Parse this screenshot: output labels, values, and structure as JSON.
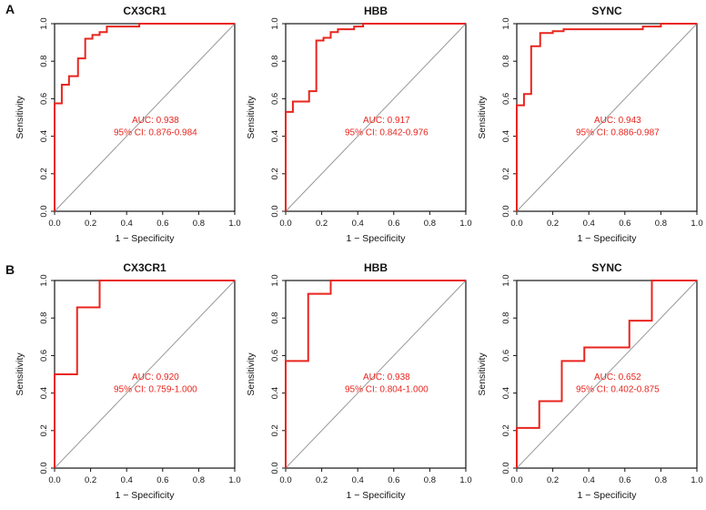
{
  "figure": {
    "row_labels": [
      "A",
      "B"
    ]
  },
  "style": {
    "curve_color": "#e8251e",
    "reference_color": "#999999",
    "axis_color": "#141414",
    "annotation_color": "#e8251e",
    "background": "#ffffff"
  },
  "chart_data": [
    {
      "type": "line",
      "panel": "A",
      "title": "CX3CR1",
      "xlabel": "1 − Specificity",
      "ylabel": "Sensitivity",
      "xlim": [
        0,
        1
      ],
      "ylim": [
        0,
        1
      ],
      "xticks": [
        "0.0",
        "0.2",
        "0.4",
        "0.6",
        "0.8",
        "1.0"
      ],
      "yticks": [
        "0.0",
        "0.2",
        "0.4",
        "0.6",
        "0.8",
        "1.0"
      ],
      "grid": false,
      "legend": "none",
      "annotations": [
        {
          "text": "AUC: 0.938",
          "x": 0.56,
          "y": 0.47
        },
        {
          "text": "95% CI: 0.876-0.984",
          "x": 0.56,
          "y": 0.405
        }
      ],
      "series": [
        {
          "name": "roc-curve",
          "points": [
            [
              0,
              0
            ],
            [
              0,
              0.575
            ],
            [
              0.04,
              0.575
            ],
            [
              0.04,
              0.675
            ],
            [
              0.08,
              0.675
            ],
            [
              0.08,
              0.72
            ],
            [
              0.13,
              0.72
            ],
            [
              0.13,
              0.815
            ],
            [
              0.17,
              0.815
            ],
            [
              0.17,
              0.92
            ],
            [
              0.21,
              0.92
            ],
            [
              0.21,
              0.94
            ],
            [
              0.25,
              0.94
            ],
            [
              0.25,
              0.955
            ],
            [
              0.29,
              0.955
            ],
            [
              0.29,
              0.985
            ],
            [
              0.47,
              0.985
            ],
            [
              0.47,
              1
            ],
            [
              1,
              1
            ]
          ]
        },
        {
          "name": "chance-reference",
          "points": [
            [
              0,
              0
            ],
            [
              1,
              1
            ]
          ]
        }
      ]
    },
    {
      "type": "line",
      "panel": "A",
      "title": "HBB",
      "xlabel": "1 − Specificity",
      "ylabel": "Sensitivity",
      "xlim": [
        0,
        1
      ],
      "ylim": [
        0,
        1
      ],
      "xticks": [
        "0.0",
        "0.2",
        "0.4",
        "0.6",
        "0.8",
        "1.0"
      ],
      "yticks": [
        "0.0",
        "0.2",
        "0.4",
        "0.6",
        "0.8",
        "1.0"
      ],
      "grid": false,
      "legend": "none",
      "annotations": [
        {
          "text": "AUC: 0.917",
          "x": 0.56,
          "y": 0.47
        },
        {
          "text": "95% CI: 0.842-0.976",
          "x": 0.56,
          "y": 0.405
        }
      ],
      "series": [
        {
          "name": "roc-curve",
          "points": [
            [
              0,
              0
            ],
            [
              0,
              0.53
            ],
            [
              0.04,
              0.53
            ],
            [
              0.04,
              0.585
            ],
            [
              0.13,
              0.585
            ],
            [
              0.13,
              0.64
            ],
            [
              0.17,
              0.64
            ],
            [
              0.17,
              0.91
            ],
            [
              0.21,
              0.91
            ],
            [
              0.21,
              0.925
            ],
            [
              0.25,
              0.925
            ],
            [
              0.25,
              0.955
            ],
            [
              0.29,
              0.955
            ],
            [
              0.29,
              0.97
            ],
            [
              0.38,
              0.97
            ],
            [
              0.38,
              0.985
            ],
            [
              0.43,
              0.985
            ],
            [
              0.43,
              1
            ],
            [
              1,
              1
            ]
          ]
        },
        {
          "name": "chance-reference",
          "points": [
            [
              0,
              0
            ],
            [
              1,
              1
            ]
          ]
        }
      ]
    },
    {
      "type": "line",
      "panel": "A",
      "title": "SYNC",
      "xlabel": "1 − Specificity",
      "ylabel": "Sensitivity",
      "xlim": [
        0,
        1
      ],
      "ylim": [
        0,
        1
      ],
      "xticks": [
        "0.0",
        "0.2",
        "0.4",
        "0.6",
        "0.8",
        "1.0"
      ],
      "yticks": [
        "0.0",
        "0.2",
        "0.4",
        "0.6",
        "0.8",
        "1.0"
      ],
      "grid": false,
      "legend": "none",
      "annotations": [
        {
          "text": "AUC: 0.943",
          "x": 0.56,
          "y": 0.47
        },
        {
          "text": "95% CI: 0.886-0.987",
          "x": 0.56,
          "y": 0.405
        }
      ],
      "series": [
        {
          "name": "roc-curve",
          "points": [
            [
              0,
              0
            ],
            [
              0,
              0.565
            ],
            [
              0.04,
              0.565
            ],
            [
              0.04,
              0.625
            ],
            [
              0.08,
              0.625
            ],
            [
              0.08,
              0.88
            ],
            [
              0.13,
              0.88
            ],
            [
              0.13,
              0.95
            ],
            [
              0.2,
              0.95
            ],
            [
              0.2,
              0.96
            ],
            [
              0.26,
              0.96
            ],
            [
              0.26,
              0.97
            ],
            [
              0.7,
              0.97
            ],
            [
              0.7,
              0.985
            ],
            [
              0.8,
              0.985
            ],
            [
              0.8,
              1
            ],
            [
              1,
              1
            ]
          ]
        },
        {
          "name": "chance-reference",
          "points": [
            [
              0,
              0
            ],
            [
              1,
              1
            ]
          ]
        }
      ]
    },
    {
      "type": "line",
      "panel": "B",
      "title": "CX3CR1",
      "xlabel": "1 − Specificity",
      "ylabel": "Sensitivity",
      "xlim": [
        0,
        1
      ],
      "ylim": [
        0,
        1
      ],
      "xticks": [
        "0.0",
        "0.2",
        "0.4",
        "0.6",
        "0.8",
        "1.0"
      ],
      "yticks": [
        "0.0",
        "0.2",
        "0.4",
        "0.6",
        "0.8",
        "1.0"
      ],
      "grid": false,
      "legend": "none",
      "annotations": [
        {
          "text": "AUC: 0.920",
          "x": 0.56,
          "y": 0.47
        },
        {
          "text": "95% CI: 0.759-1.000",
          "x": 0.56,
          "y": 0.405
        }
      ],
      "series": [
        {
          "name": "roc-curve",
          "points": [
            [
              0,
              0
            ],
            [
              0,
              0.5
            ],
            [
              0.125,
              0.5
            ],
            [
              0.125,
              0.857
            ],
            [
              0.25,
              0.857
            ],
            [
              0.25,
              1
            ],
            [
              1,
              1
            ]
          ]
        },
        {
          "name": "chance-reference",
          "points": [
            [
              0,
              0
            ],
            [
              1,
              1
            ]
          ]
        }
      ]
    },
    {
      "type": "line",
      "panel": "B",
      "title": "HBB",
      "xlabel": "1 − Specificity",
      "ylabel": "Sensitivity",
      "xlim": [
        0,
        1
      ],
      "ylim": [
        0,
        1
      ],
      "xticks": [
        "0.0",
        "0.2",
        "0.4",
        "0.6",
        "0.8",
        "1.0"
      ],
      "yticks": [
        "0.0",
        "0.2",
        "0.4",
        "0.6",
        "0.8",
        "1.0"
      ],
      "grid": false,
      "legend": "none",
      "annotations": [
        {
          "text": "AUC: 0.938",
          "x": 0.56,
          "y": 0.47
        },
        {
          "text": "95% CI: 0.804-1.000",
          "x": 0.56,
          "y": 0.405
        }
      ],
      "series": [
        {
          "name": "roc-curve",
          "points": [
            [
              0,
              0
            ],
            [
              0,
              0.571
            ],
            [
              0.125,
              0.571
            ],
            [
              0.125,
              0.929
            ],
            [
              0.25,
              0.929
            ],
            [
              0.25,
              1
            ],
            [
              1,
              1
            ]
          ]
        },
        {
          "name": "chance-reference",
          "points": [
            [
              0,
              0
            ],
            [
              1,
              1
            ]
          ]
        }
      ]
    },
    {
      "type": "line",
      "panel": "B",
      "title": "SYNC",
      "xlabel": "1 − Specificity",
      "ylabel": "Sensitivity",
      "xlim": [
        0,
        1
      ],
      "ylim": [
        0,
        1
      ],
      "xticks": [
        "0.0",
        "0.2",
        "0.4",
        "0.6",
        "0.8",
        "1.0"
      ],
      "yticks": [
        "0.0",
        "0.2",
        "0.4",
        "0.6",
        "0.8",
        "1.0"
      ],
      "grid": false,
      "legend": "none",
      "annotations": [
        {
          "text": "AUC: 0.652",
          "x": 0.56,
          "y": 0.47
        },
        {
          "text": "95% CI: 0.402-0.875",
          "x": 0.56,
          "y": 0.405
        }
      ],
      "series": [
        {
          "name": "roc-curve",
          "points": [
            [
              0,
              0
            ],
            [
              0,
              0.214
            ],
            [
              0.125,
              0.214
            ],
            [
              0.125,
              0.357
            ],
            [
              0.25,
              0.357
            ],
            [
              0.25,
              0.571
            ],
            [
              0.375,
              0.571
            ],
            [
              0.375,
              0.643
            ],
            [
              0.625,
              0.643
            ],
            [
              0.625,
              0.786
            ],
            [
              0.75,
              0.786
            ],
            [
              0.75,
              1
            ],
            [
              1,
              1
            ]
          ]
        },
        {
          "name": "chance-reference",
          "points": [
            [
              0,
              0
            ],
            [
              1,
              1
            ]
          ]
        }
      ]
    }
  ]
}
